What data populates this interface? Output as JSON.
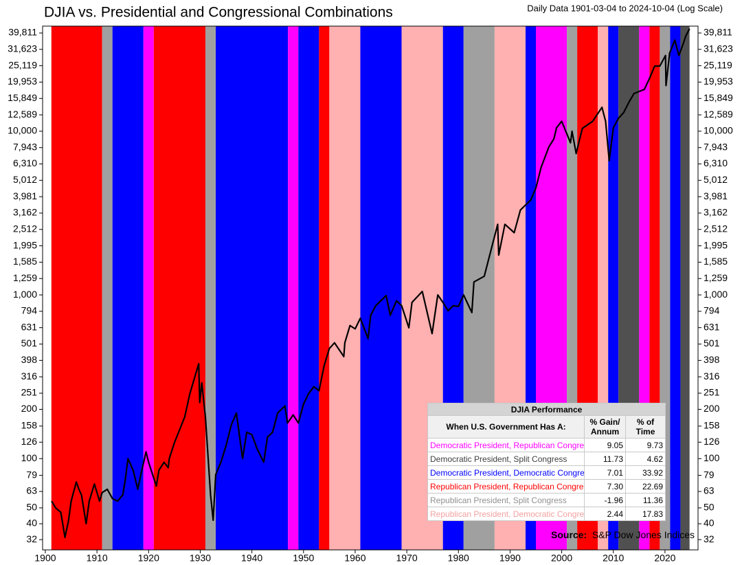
{
  "chart_data": {
    "type": "line",
    "title": "DJIA vs. Presidential and Congressional Combinations",
    "subtitle": "Daily Data 1901-03-04 to 2024-10-04 (Log Scale)",
    "log_scale": true,
    "grid": false,
    "color": "#000000",
    "xlim": [
      1899.47,
      2026.4
    ],
    "xticks": [
      1900,
      1910,
      1920,
      1930,
      1940,
      1950,
      1960,
      1970,
      1980,
      1990,
      2000,
      2010,
      2020
    ],
    "ylim": [
      27.7,
      43850
    ],
    "yticks": [
      32,
      40,
      50,
      63,
      79,
      100,
      126,
      158,
      200,
      251,
      316,
      398,
      501,
      631,
      794,
      {
        "value": 1000,
        "label": "1,000"
      },
      {
        "value": 1259,
        "label": "1,259"
      },
      {
        "value": 1585,
        "label": "1,585"
      },
      {
        "value": 1995,
        "label": "1,995"
      },
      {
        "value": 2512,
        "label": "2,512"
      },
      {
        "value": 3162,
        "label": "3,162"
      },
      {
        "value": 3981,
        "label": "3,981"
      },
      {
        "value": 5012,
        "label": "5,012"
      },
      {
        "value": 6310,
        "label": "6,310"
      },
      {
        "value": 7943,
        "label": "7,943"
      },
      {
        "value": 10000,
        "label": "10,000"
      },
      {
        "value": 12589,
        "label": "12,589"
      },
      {
        "value": 15849,
        "label": "15,849"
      },
      {
        "value": 19953,
        "label": "19,953"
      },
      {
        "value": 25119,
        "label": "25,119"
      },
      {
        "value": 31623,
        "label": "31,623"
      },
      {
        "value": 39811,
        "label": "39,811"
      }
    ],
    "x": [
      1901.2,
      1902,
      1903,
      1903.8,
      1904.5,
      1905,
      1906,
      1906.5,
      1907,
      1907.9,
      1908.5,
      1909.5,
      1910.5,
      1911,
      1912,
      1913,
      1914,
      1915,
      1915.5,
      1916,
      1917,
      1917.9,
      1918.5,
      1919.5,
      1920,
      1921.5,
      1922,
      1923,
      1923.8,
      1924,
      1925,
      1926,
      1927,
      1928,
      1929.7,
      1929.9,
      1930.3,
      1931,
      1932,
      1932.5,
      1933,
      1934,
      1935,
      1936,
      1937,
      1938.2,
      1939,
      1940,
      1941,
      1942.3,
      1943,
      1944,
      1945,
      1946.4,
      1946.9,
      1948,
      1949,
      1950,
      1951,
      1952,
      1953,
      1954,
      1955,
      1956,
      1957.8,
      1958,
      1959,
      1960,
      1961,
      1962.5,
      1963,
      1964,
      1966,
      1966.8,
      1968,
      1969,
      1970.4,
      1971,
      1973,
      1974.9,
      1976,
      1977,
      1978,
      1979,
      1980,
      1981,
      1982.6,
      1983,
      1985,
      1987.6,
      1987.8,
      1989,
      1990.8,
      1992,
      1994,
      1995,
      1996,
      1997.5,
      1998.5,
      1999,
      2000,
      2001.7,
      2002,
      2002.8,
      2003.5,
      2004,
      2006,
      2007.8,
      2008.5,
      2009.2,
      2010,
      2011,
      2012,
      2013,
      2014,
      2015,
      2016,
      2017,
      2018,
      2019,
      2020.1,
      2020.2,
      2020.9,
      2021.9,
      2022.7,
      2023.5,
      2024,
      2024.76
    ],
    "values": [
      55,
      50,
      47,
      33,
      42,
      55,
      72,
      65,
      60,
      40,
      55,
      70,
      55,
      62,
      65,
      57,
      55,
      60,
      75,
      100,
      85,
      65,
      80,
      110,
      95,
      68,
      85,
      95,
      88,
      100,
      125,
      150,
      180,
      250,
      380,
      220,
      290,
      180,
      60,
      42,
      80,
      95,
      120,
      160,
      190,
      100,
      145,
      140,
      115,
      95,
      135,
      145,
      190,
      210,
      165,
      185,
      165,
      215,
      250,
      275,
      260,
      370,
      470,
      510,
      420,
      510,
      650,
      620,
      720,
      540,
      750,
      860,
      990,
      750,
      920,
      860,
      630,
      900,
      1050,
      580,
      1000,
      900,
      800,
      860,
      850,
      1000,
      780,
      1200,
      1300,
      2700,
      1750,
      2700,
      2400,
      3300,
      3800,
      4500,
      6000,
      8000,
      9000,
      10500,
      11500,
      8500,
      10000,
      7300,
      9000,
      10400,
      11500,
      14000,
      11500,
      6600,
      10500,
      12000,
      13000,
      15000,
      17000,
      17500,
      18000,
      21000,
      25000,
      25000,
      29000,
      19000,
      30000,
      36000,
      29000,
      34000,
      38000,
      42300
    ],
    "periods": [
      {
        "start": 1901.17,
        "end": 1911,
        "color": "#ff0000"
      },
      {
        "start": 1911,
        "end": 1913,
        "color": "#a0a0a0"
      },
      {
        "start": 1913,
        "end": 1919,
        "color": "#0000ff"
      },
      {
        "start": 1919,
        "end": 1921,
        "color": "#ff00ff"
      },
      {
        "start": 1921,
        "end": 1931,
        "color": "#ff0000"
      },
      {
        "start": 1931,
        "end": 1933,
        "color": "#a0a0a0"
      },
      {
        "start": 1933,
        "end": 1947,
        "color": "#0000ff"
      },
      {
        "start": 1947,
        "end": 1949,
        "color": "#ff00ff"
      },
      {
        "start": 1949,
        "end": 1953,
        "color": "#0000ff"
      },
      {
        "start": 1953,
        "end": 1955,
        "color": "#ff0000"
      },
      {
        "start": 1955,
        "end": 1961,
        "color": "#ffb0b0"
      },
      {
        "start": 1961,
        "end": 1969,
        "color": "#0000ff"
      },
      {
        "start": 1969,
        "end": 1977,
        "color": "#ffb0b0"
      },
      {
        "start": 1977,
        "end": 1981,
        "color": "#0000ff"
      },
      {
        "start": 1981,
        "end": 1987,
        "color": "#a0a0a0"
      },
      {
        "start": 1987,
        "end": 1993,
        "color": "#ffb0b0"
      },
      {
        "start": 1993,
        "end": 1995,
        "color": "#0000ff"
      },
      {
        "start": 1995,
        "end": 2001,
        "color": "#ff00ff"
      },
      {
        "start": 2001,
        "end": 2003,
        "color": "#a0a0a0"
      },
      {
        "start": 2003,
        "end": 2007,
        "color": "#ff0000"
      },
      {
        "start": 2007,
        "end": 2009,
        "color": "#ffb0b0"
      },
      {
        "start": 2009,
        "end": 2011,
        "color": "#0000ff"
      },
      {
        "start": 2011,
        "end": 2015,
        "color": "#505050"
      },
      {
        "start": 2015,
        "end": 2017,
        "color": "#ff00ff"
      },
      {
        "start": 2017,
        "end": 2019,
        "color": "#ff0000"
      },
      {
        "start": 2019,
        "end": 2021,
        "color": "#a0a0a0"
      },
      {
        "start": 2021,
        "end": 2023,
        "color": "#0000ff"
      },
      {
        "start": 2023,
        "end": 2024.76,
        "color": "#505050"
      }
    ],
    "table": {
      "title": "DJIA Performance",
      "header": [
        "When U.S. Government Has A:",
        "% Gain/ Annum",
        "% of Time"
      ],
      "rows": [
        {
          "label": "Democratic President, Republican Congres",
          "color": "#ff00ff",
          "gain": "9.05",
          "time": "9.73"
        },
        {
          "label": "Democratic President, Split Congress",
          "color": "#404040",
          "gain": "11.73",
          "time": "4.62"
        },
        {
          "label": "Democratic President, Democratic Congres",
          "color": "#0000ff",
          "gain": "7.01",
          "time": "33.92"
        },
        {
          "label": "Republican President, Republican Congres",
          "color": "#ff0000",
          "gain": "7.30",
          "time": "22.69"
        },
        {
          "label": "Republican President, Split Congress",
          "color": "#909090",
          "gain": "-1.96",
          "time": "11.36"
        },
        {
          "label": "Republican President, Democratic Congres",
          "color": "#f4a0a0",
          "gain": "2.44",
          "time": "17.83"
        }
      ]
    },
    "source_label": "Source:",
    "source": "S&P Dow Jones Indices"
  }
}
